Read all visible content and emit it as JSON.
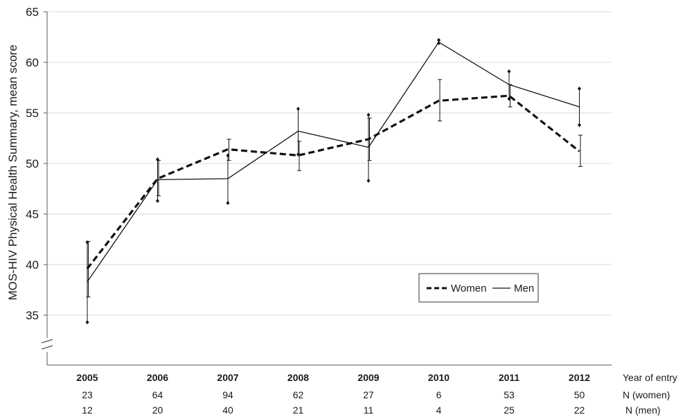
{
  "chart_data": {
    "type": "line",
    "ylabel": "MOS-HIV Physical Health Summary, mean score",
    "yticks": [
      35,
      40,
      45,
      50,
      55,
      60,
      65
    ],
    "ylim": [
      30,
      65
    ],
    "axis_break": true,
    "grid": true,
    "legend_position": "lower-right",
    "categories": [
      "2005",
      "2006",
      "2007",
      "2008",
      "2009",
      "2010",
      "2011",
      "2012"
    ],
    "series": [
      {
        "name": "Women",
        "style": "dashed",
        "values": [
          39.6,
          48.5,
          51.4,
          50.8,
          52.4,
          56.2,
          56.7,
          51.2
        ],
        "err_low": [
          36.8,
          46.8,
          50.3,
          49.3,
          50.3,
          54.2,
          55.6,
          49.7
        ],
        "err_high": [
          42.3,
          50.3,
          52.4,
          52.2,
          54.5,
          58.3,
          57.8,
          52.8
        ]
      },
      {
        "name": "Men",
        "style": "solid",
        "values": [
          38.3,
          48.4,
          48.5,
          53.2,
          51.6,
          62.0,
          57.8,
          55.6
        ],
        "err_low": [
          34.3,
          46.3,
          46.1,
          50.9,
          48.3,
          61.9,
          56.4,
          53.8
        ],
        "err_high": [
          42.2,
          50.4,
          50.8,
          55.4,
          54.8,
          62.2,
          59.1,
          57.4
        ]
      }
    ],
    "table_rows": [
      {
        "label": "Year of entry",
        "values": [
          "2005",
          "2006",
          "2007",
          "2008",
          "2009",
          "2010",
          "2011",
          "2012"
        ]
      },
      {
        "label": "N (women)",
        "values": [
          "23",
          "64",
          "94",
          "62",
          "27",
          "6",
          "53",
          "50"
        ]
      },
      {
        "label": "N (men)",
        "values": [
          "12",
          "20",
          "40",
          "21",
          "11",
          "4",
          "25",
          "22"
        ]
      }
    ],
    "colors": {
      "line": "#111111",
      "grid": "#d9d9d9",
      "axis": "#555555"
    }
  }
}
